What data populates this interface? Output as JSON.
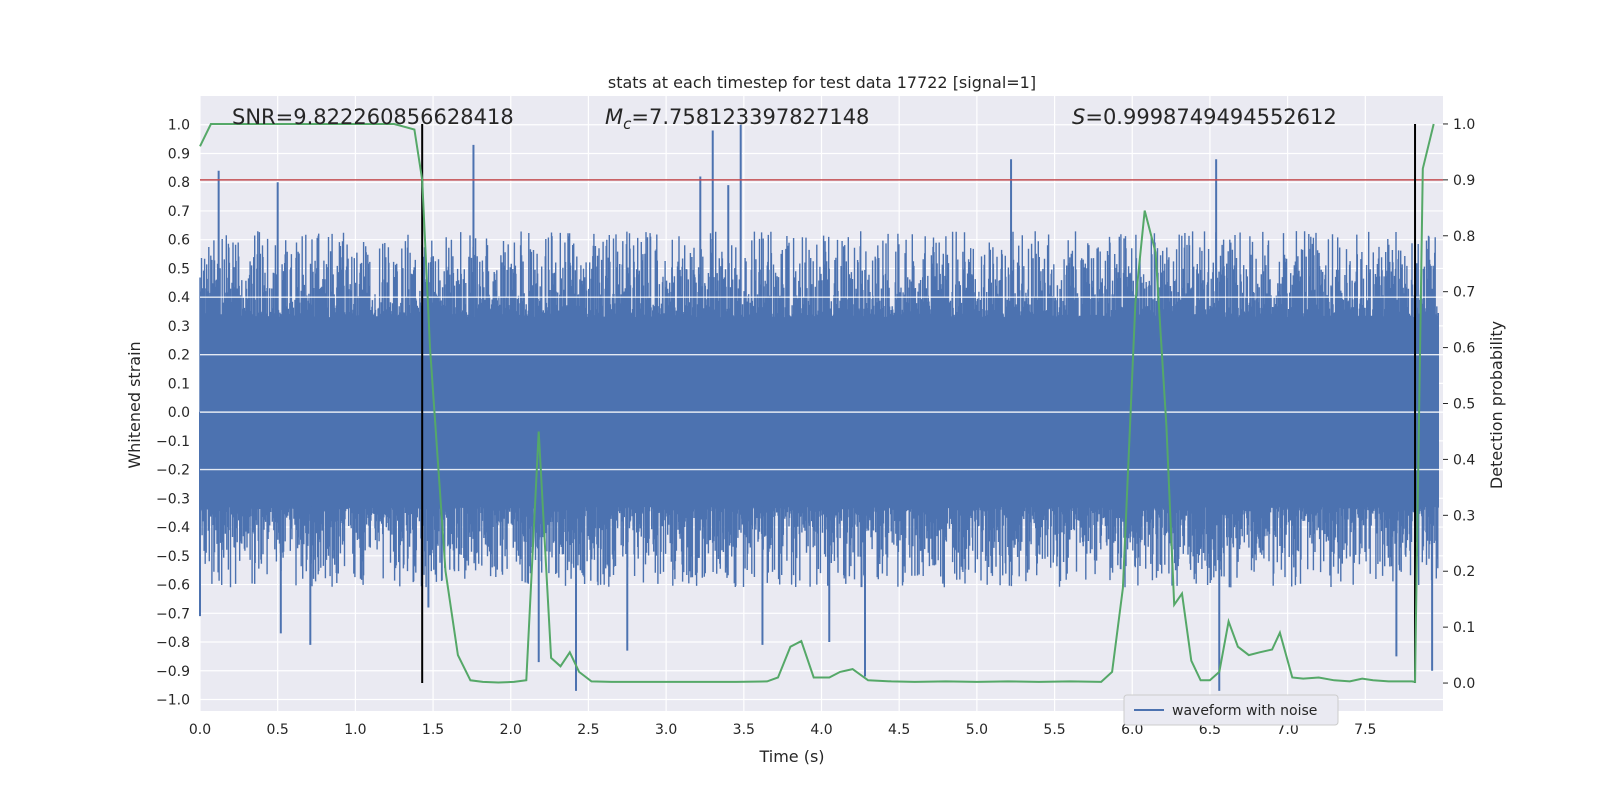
{
  "chart_data": {
    "type": "line",
    "title": "stats at each timestep for test data 17722 [signal=1]",
    "xlabel": "Time (s)",
    "ylabel": "Whitened strain",
    "y2label": "Detection probability",
    "xlim": [
      0.0,
      8.0
    ],
    "ylim": [
      -1.04,
      1.1
    ],
    "y2lim": [
      -0.05,
      1.05
    ],
    "x_ticks": [
      "0.0",
      "0.5",
      "1.0",
      "1.5",
      "2.0",
      "2.5",
      "3.0",
      "3.5",
      "4.0",
      "4.5",
      "5.0",
      "5.5",
      "6.0",
      "6.5",
      "7.0",
      "7.5"
    ],
    "y_ticks": [
      "1.0",
      "0.9",
      "0.8",
      "0.7",
      "0.6",
      "0.5",
      "0.4",
      "0.3",
      "0.2",
      "0.1",
      "0.0",
      "−0.1",
      "−0.2",
      "−0.3",
      "−0.4",
      "−0.5",
      "−0.6",
      "−0.7",
      "−0.8",
      "−0.9",
      "−1.0"
    ],
    "y2_ticks": [
      "1.0",
      "0.9",
      "0.8",
      "0.7",
      "0.6",
      "0.5",
      "0.4",
      "0.3",
      "0.2",
      "0.1",
      "0.0"
    ],
    "annotations": {
      "snr": "SNR=9.822260856628418",
      "mc_symbol": "M",
      "mc_sub": "c",
      "mc_value": "=7.758123397827148",
      "s_symbol": "S",
      "s_value": "=0.9998749494552612"
    },
    "threshold": {
      "y2": 0.9,
      "color": "#c44e52"
    },
    "event_lines_x": [
      1.43,
      7.82
    ],
    "series": [
      {
        "name": "waveform with noise",
        "axis": "left",
        "color": "#4c72b0",
        "spike_peaks": [
          {
            "x": 0.12,
            "y": 0.84
          },
          {
            "x": 0.5,
            "y": 0.8
          },
          {
            "x": 1.76,
            "y": 0.93
          },
          {
            "x": 3.22,
            "y": 0.82
          },
          {
            "x": 3.3,
            "y": 0.98
          },
          {
            "x": 3.4,
            "y": 0.79
          },
          {
            "x": 3.48,
            "y": 1.0
          },
          {
            "x": 5.22,
            "y": 0.88
          },
          {
            "x": 6.54,
            "y": 0.88
          },
          {
            "x": 0.0,
            "y": -0.71
          },
          {
            "x": 0.52,
            "y": -0.77
          },
          {
            "x": 0.71,
            "y": -0.81
          },
          {
            "x": 1.47,
            "y": -0.68
          },
          {
            "x": 2.18,
            "y": -0.87
          },
          {
            "x": 2.42,
            "y": -0.97
          },
          {
            "x": 2.75,
            "y": -0.83
          },
          {
            "x": 3.62,
            "y": -0.81
          },
          {
            "x": 4.05,
            "y": -0.8
          },
          {
            "x": 4.28,
            "y": -0.92
          },
          {
            "x": 6.56,
            "y": -0.97
          },
          {
            "x": 7.7,
            "y": -0.85
          },
          {
            "x": 7.93,
            "y": -0.9
          }
        ]
      },
      {
        "name": "Detection probability",
        "axis": "right",
        "color": "#55a868",
        "x": [
          0.0,
          0.07,
          0.15,
          0.3,
          0.5,
          0.7,
          0.9,
          1.1,
          1.25,
          1.38,
          1.43,
          1.48,
          1.58,
          1.66,
          1.74,
          1.82,
          1.92,
          2.02,
          2.1,
          2.18,
          2.26,
          2.32,
          2.38,
          2.44,
          2.52,
          2.65,
          2.85,
          3.05,
          3.25,
          3.45,
          3.65,
          3.72,
          3.8,
          3.87,
          3.95,
          4.05,
          4.12,
          4.2,
          4.3,
          4.45,
          4.6,
          4.8,
          5.0,
          5.2,
          5.4,
          5.6,
          5.8,
          5.87,
          5.94,
          6.02,
          6.08,
          6.15,
          6.22,
          6.27,
          6.32,
          6.38,
          6.44,
          6.5,
          6.56,
          6.62,
          6.68,
          6.75,
          6.82,
          6.9,
          6.95,
          7.03,
          7.1,
          7.2,
          7.3,
          7.4,
          7.48,
          7.55,
          7.65,
          7.8,
          7.82,
          7.87,
          7.94
        ],
        "values": [
          0.96,
          1.0,
          1.0,
          1.0,
          1.0,
          1.0,
          1.0,
          1.0,
          1.0,
          0.99,
          0.9,
          0.6,
          0.2,
          0.05,
          0.005,
          0.002,
          0.001,
          0.002,
          0.005,
          0.45,
          0.045,
          0.03,
          0.055,
          0.02,
          0.003,
          0.002,
          0.002,
          0.002,
          0.002,
          0.002,
          0.003,
          0.01,
          0.065,
          0.075,
          0.01,
          0.01,
          0.02,
          0.025,
          0.005,
          0.003,
          0.002,
          0.003,
          0.002,
          0.003,
          0.002,
          0.003,
          0.002,
          0.02,
          0.17,
          0.68,
          0.845,
          0.77,
          0.46,
          0.14,
          0.16,
          0.04,
          0.005,
          0.005,
          0.02,
          0.11,
          0.065,
          0.05,
          0.055,
          0.06,
          0.09,
          0.01,
          0.008,
          0.01,
          0.005,
          0.003,
          0.008,
          0.005,
          0.003,
          0.003,
          0.002,
          0.92,
          1.0
        ]
      }
    ],
    "legend": {
      "label": "waveform with noise",
      "placement": "lower-right"
    }
  }
}
